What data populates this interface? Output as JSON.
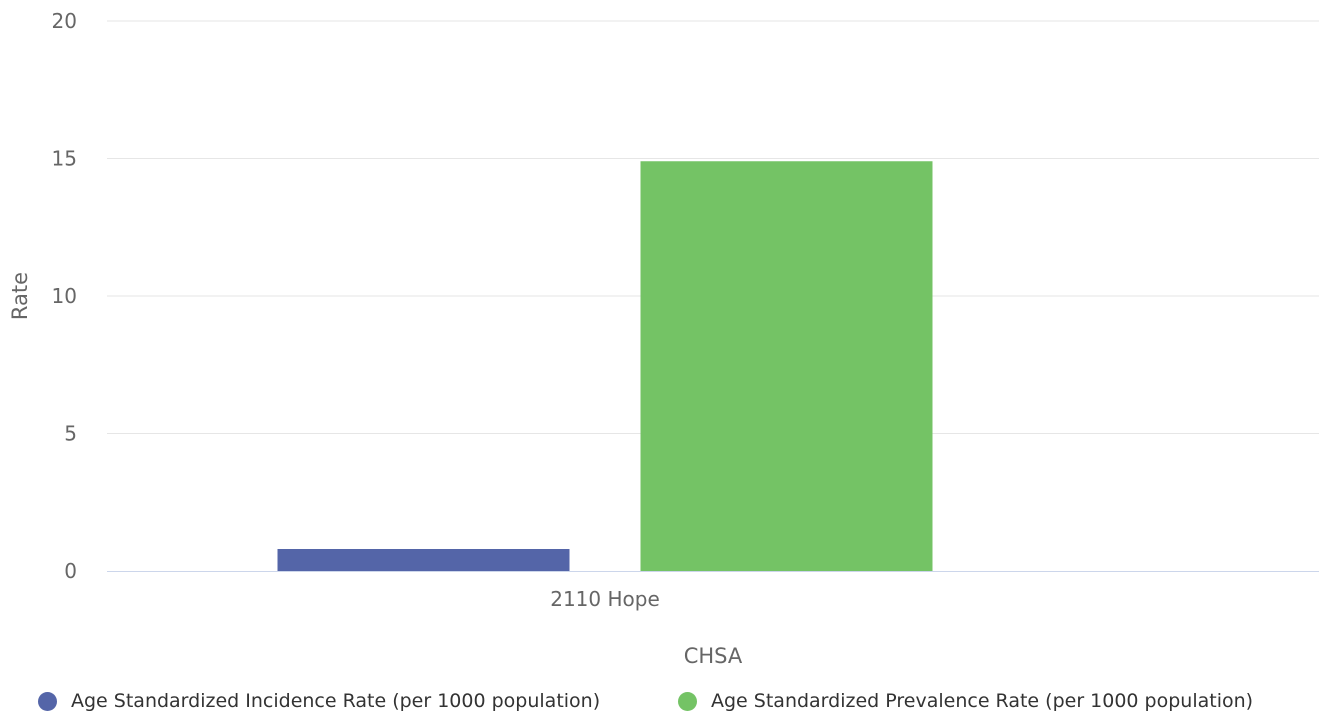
{
  "chart_data": {
    "type": "bar",
    "categories": [
      "2110 Hope"
    ],
    "series": [
      {
        "name": "Age Standardized Incidence Rate (per 1000 population)",
        "values": [
          0.8
        ],
        "color": "#5465a8"
      },
      {
        "name": "Age Standardized Prevalence Rate (per 1000 population)",
        "values": [
          14.9
        ],
        "color": "#74c365"
      }
    ],
    "title": "",
    "xlabel": "CHSA",
    "ylabel": "Rate",
    "ylim": [
      0,
      20
    ],
    "yticks": [
      0,
      5,
      10,
      15,
      20
    ],
    "grid": true,
    "legend_position": "bottom"
  },
  "colors": {
    "grid": "#e6e6e6",
    "axis_line": "#ccd6eb",
    "tick_text": "#666666",
    "legend_text": "#333333"
  }
}
